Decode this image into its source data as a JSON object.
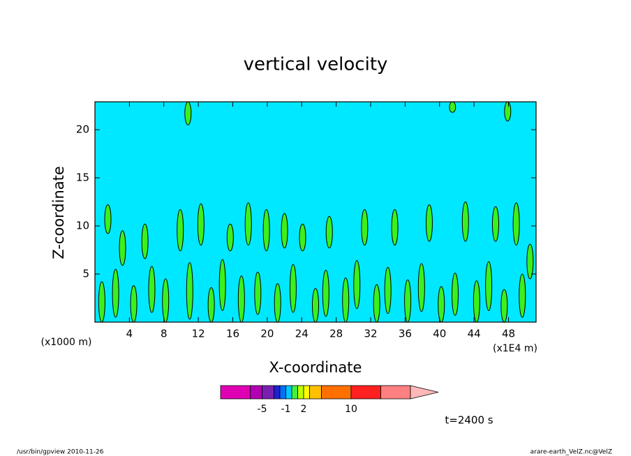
{
  "chart_data": {
    "type": "contour",
    "title": "vertical velocity",
    "x_label": "X-coordinate",
    "y_label": "Z-coordinate",
    "x_unit": "(x1E4 m)",
    "y_unit": "(x1000 m)",
    "xlim": [
      0,
      51.2
    ],
    "ylim": [
      0,
      22.9
    ],
    "xticks": [
      4,
      8,
      12,
      16,
      20,
      24,
      28,
      32,
      36,
      40,
      44,
      48
    ],
    "yticks": [
      5,
      10,
      15,
      20
    ],
    "field_color": "#00e8ff",
    "cell_color": "#3cf01e",
    "cells": [
      [
        1.5,
        9.2,
        12.2
      ],
      [
        3.2,
        5.9,
        9.5
      ],
      [
        5.8,
        6.6,
        10.2
      ],
      [
        9.9,
        7.4,
        11.7
      ],
      [
        12.3,
        8,
        12.3
      ],
      [
        10.8,
        20.5,
        22.9
      ],
      [
        15.7,
        7.4,
        10.2
      ],
      [
        17.8,
        8,
        12.4
      ],
      [
        19.9,
        7.4,
        11.7
      ],
      [
        22,
        7.7,
        11.3
      ],
      [
        24.1,
        7.4,
        10.2
      ],
      [
        27.2,
        7.7,
        11
      ],
      [
        31.3,
        8,
        11.7
      ],
      [
        34.8,
        8,
        11.7
      ],
      [
        38.8,
        8.4,
        12.2
      ],
      [
        41.5,
        21.8,
        22.9
      ],
      [
        43,
        8.4,
        12.5
      ],
      [
        46.5,
        8.4,
        12
      ],
      [
        47.9,
        20.9,
        22.9
      ],
      [
        48.9,
        8,
        12.4
      ],
      [
        50.5,
        4.5,
        8.1
      ],
      [
        0.8,
        0,
        4.2
      ],
      [
        2.4,
        0.5,
        5.5
      ],
      [
        4.5,
        0,
        3.8
      ],
      [
        6.6,
        1,
        5.8
      ],
      [
        8.2,
        0,
        4.5
      ],
      [
        11,
        0.3,
        6.2
      ],
      [
        13.5,
        0,
        3.6
      ],
      [
        14.8,
        1.2,
        6.5
      ],
      [
        17,
        0,
        4.8
      ],
      [
        18.9,
        0.8,
        5.2
      ],
      [
        21.2,
        0,
        4
      ],
      [
        23,
        1,
        6
      ],
      [
        25.6,
        0,
        3.5
      ],
      [
        26.8,
        0.6,
        5.4
      ],
      [
        29.1,
        0,
        4.6
      ],
      [
        30.4,
        1.4,
        6.4
      ],
      [
        32.7,
        0,
        3.9
      ],
      [
        34,
        0.9,
        5.7
      ],
      [
        36.3,
        0,
        4.4
      ],
      [
        37.9,
        1.1,
        6.1
      ],
      [
        40.2,
        0,
        3.7
      ],
      [
        41.8,
        0.7,
        5.1
      ],
      [
        44.3,
        0,
        4.3
      ],
      [
        45.7,
        1.2,
        6.3
      ],
      [
        47.5,
        0,
        3.4
      ],
      [
        49.6,
        0.5,
        5
      ]
    ],
    "colorbar": {
      "levels": [
        -12,
        -7,
        -5,
        -3,
        -2,
        -1,
        0,
        1,
        2,
        3,
        5,
        10,
        15,
        20
      ],
      "colors": [
        "#e000b4",
        "#b400b4",
        "#7a20b0",
        "#2020d0",
        "#0070ff",
        "#00c8ff",
        "#40f040",
        "#c0ff00",
        "#ffff00",
        "#ffc000",
        "#ff7000",
        "#ff2020",
        "#ff8080"
      ],
      "extend_color": "#ffb8b8",
      "ticks": [
        -5,
        -1,
        2,
        10
      ]
    },
    "annotation": "t=2400 s",
    "footer_left": "/usr/bin/gpview  2010-11-26",
    "footer_right": "arare-earth_VelZ.nc@VelZ"
  }
}
